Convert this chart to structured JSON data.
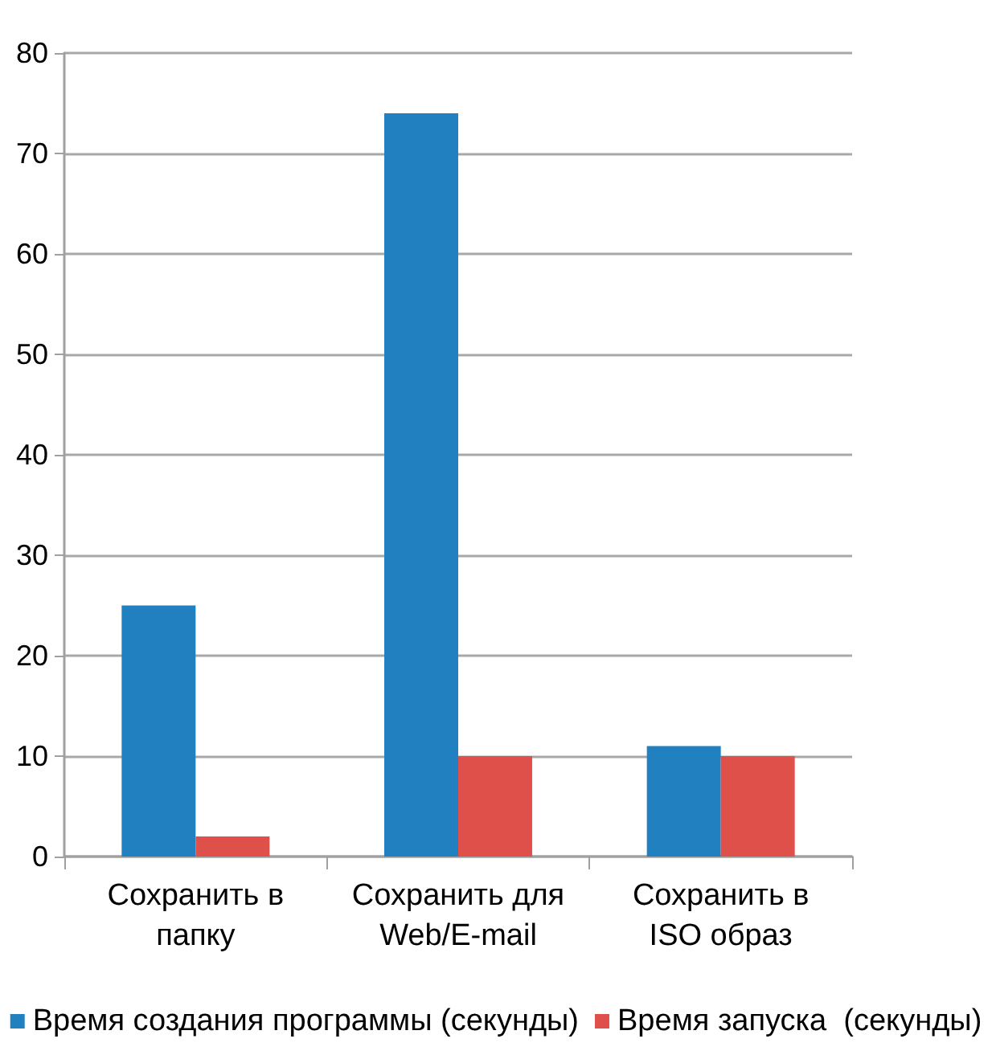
{
  "chart_data": {
    "type": "bar",
    "categories": [
      "Сохранить в папку",
      "Сохранить для Web/E-mail",
      "Сохранить в ISO образ"
    ],
    "series": [
      {
        "name": "Время создания программы (секунды)",
        "color": "#2080c0",
        "values": [
          25,
          74,
          11
        ]
      },
      {
        "name": "Время запуска  (секунды)",
        "color": "#df504b",
        "values": [
          2,
          10,
          10
        ]
      }
    ],
    "ylim": [
      0,
      80
    ],
    "yticks": [
      0,
      10,
      20,
      30,
      40,
      50,
      60,
      70,
      80
    ],
    "grid": "y",
    "legend": "bottom"
  }
}
